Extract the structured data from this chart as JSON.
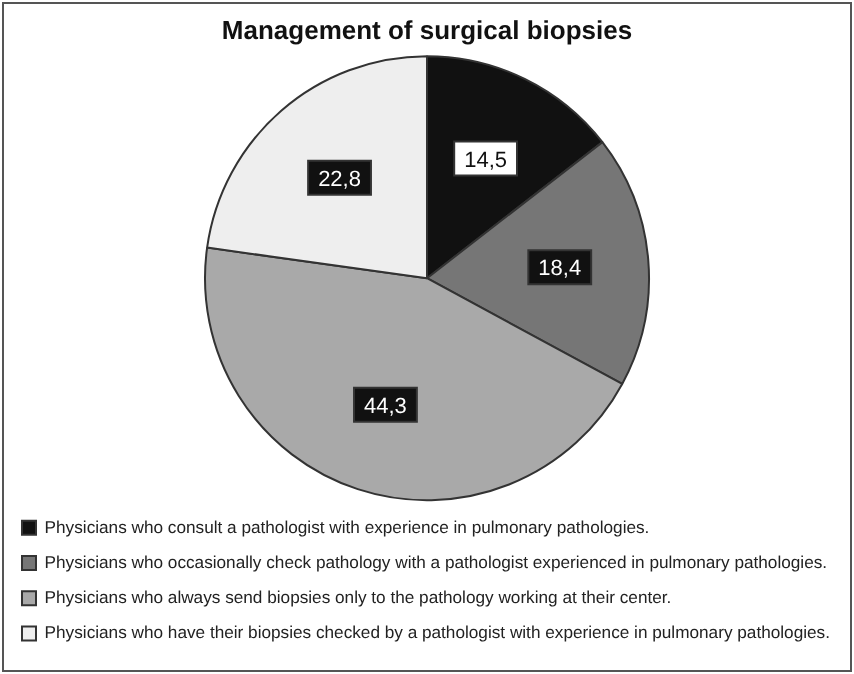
{
  "chart_data": {
    "type": "pie",
    "title": "Management of surgical biopsies",
    "categories": [
      "Physicians who consult a pathologist with experience in pulmonary pathologies.",
      "Physicians who occasionally check pathology with a pathologist experienced in pulmonary pathologies.",
      "Physicians who always send biopsies only to the pathology working at their center.",
      "Physicians who have their biopsies checked by a pathologist with experience in pulmonary pathologies."
    ],
    "values": [
      14.5,
      18.4,
      44.3,
      22.8
    ],
    "value_labels": [
      "14,5",
      "18,4",
      "44,3",
      "22,8"
    ],
    "colors": [
      "#111111",
      "#767676",
      "#a9a9a9",
      "#eeeeee"
    ],
    "legend": "bottom"
  }
}
